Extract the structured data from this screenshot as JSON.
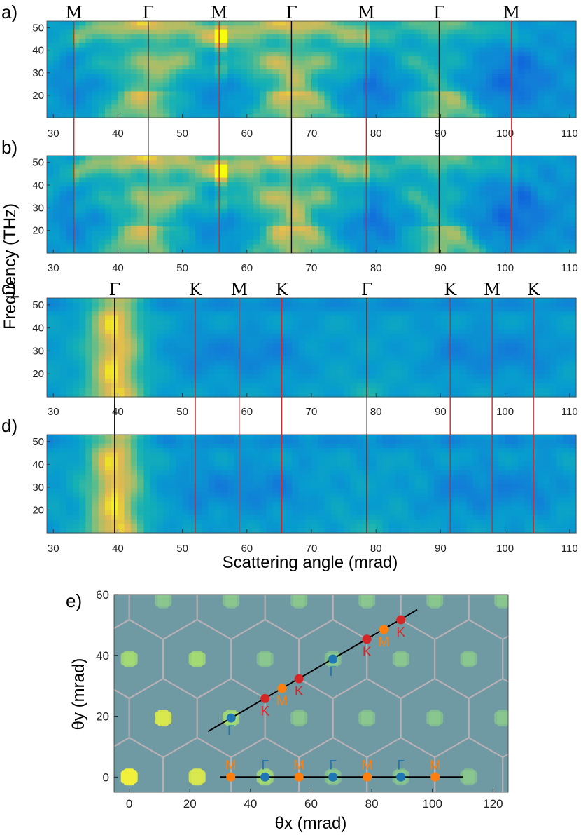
{
  "y_axis_label": "Frequency (THz)",
  "x_axis_label": "Scattering angle (mrad)",
  "colors": {
    "red_line": "#d62728",
    "black_line": "#000000",
    "point_gamma": "#1f77b4",
    "point_m": "#ff7f0e",
    "point_k": "#d62728",
    "bz_outline": "#b8b0b5"
  },
  "chart_data": [
    {
      "panel": "a)",
      "type": "heatmap",
      "xlim": [
        29,
        111
      ],
      "ylim": [
        10,
        53
      ],
      "x_ticks": [
        30,
        40,
        50,
        60,
        70,
        80,
        90,
        100,
        110
      ],
      "y_ticks": [
        20,
        30,
        40,
        50
      ],
      "markers": [
        {
          "label": "M",
          "x": 33.2,
          "color": "red"
        },
        {
          "label": "Γ",
          "x": 44.7,
          "color": "black"
        },
        {
          "label": "M",
          "x": 55.7,
          "color": "red"
        },
        {
          "label": "Γ",
          "x": 66.9,
          "color": "black"
        },
        {
          "label": "M",
          "x": 78.5,
          "color": "red"
        },
        {
          "label": "Γ",
          "x": 89.8,
          "color": "black"
        },
        {
          "label": "M",
          "x": 101.0,
          "color": "red"
        }
      ]
    },
    {
      "panel": "b)",
      "type": "heatmap",
      "xlim": [
        29,
        111
      ],
      "ylim": [
        10,
        53
      ],
      "x_ticks": [
        30,
        40,
        50,
        60,
        70,
        80,
        90,
        100,
        110
      ],
      "y_ticks": [
        20,
        30,
        40,
        50
      ],
      "markers": [
        {
          "label": "",
          "x": 33.2,
          "color": "red"
        },
        {
          "label": "",
          "x": 44.7,
          "color": "black"
        },
        {
          "label": "",
          "x": 55.7,
          "color": "red"
        },
        {
          "label": "",
          "x": 66.9,
          "color": "black"
        },
        {
          "label": "",
          "x": 78.5,
          "color": "red"
        },
        {
          "label": "",
          "x": 89.8,
          "color": "black"
        },
        {
          "label": "",
          "x": 101.0,
          "color": "red"
        }
      ]
    },
    {
      "panel": "c)",
      "type": "heatmap",
      "xlim": [
        29,
        111
      ],
      "ylim": [
        10,
        53
      ],
      "x_ticks": [
        30,
        40,
        50,
        60,
        70,
        80,
        90,
        100,
        110
      ],
      "y_ticks": [
        20,
        30,
        40,
        50
      ],
      "markers": [
        {
          "label": "Γ",
          "x": 39.5,
          "color": "black"
        },
        {
          "label": "K",
          "x": 52.0,
          "color": "red"
        },
        {
          "label": "M",
          "x": 58.8,
          "color": "red"
        },
        {
          "label": "K",
          "x": 65.4,
          "color": "red"
        },
        {
          "label": "Γ",
          "x": 78.6,
          "color": "black"
        },
        {
          "label": "K",
          "x": 91.5,
          "color": "red"
        },
        {
          "label": "M",
          "x": 98.0,
          "color": "red"
        },
        {
          "label": "K",
          "x": 104.4,
          "color": "red"
        }
      ]
    },
    {
      "panel": "d)",
      "type": "heatmap",
      "xlim": [
        29,
        111
      ],
      "ylim": [
        10,
        53
      ],
      "x_ticks": [
        30,
        40,
        50,
        60,
        70,
        80,
        90,
        100,
        110
      ],
      "y_ticks": [
        20,
        30,
        40,
        50
      ],
      "markers": [
        {
          "label": "",
          "x": 39.5,
          "color": "black"
        },
        {
          "label": "",
          "x": 52.0,
          "color": "red"
        },
        {
          "label": "",
          "x": 58.8,
          "color": "red"
        },
        {
          "label": "",
          "x": 65.4,
          "color": "red"
        },
        {
          "label": "",
          "x": 78.6,
          "color": "black"
        },
        {
          "label": "",
          "x": 91.5,
          "color": "red"
        },
        {
          "label": "",
          "x": 98.0,
          "color": "red"
        },
        {
          "label": "",
          "x": 104.4,
          "color": "red"
        }
      ]
    },
    {
      "panel": "e)",
      "type": "scatter",
      "xlabel": "θx (mrad)",
      "ylabel": "θy (mrad)",
      "xlim": [
        -5,
        125
      ],
      "ylim": [
        -5,
        60
      ],
      "x_ticks": [
        0,
        20,
        40,
        60,
        80,
        100,
        120
      ],
      "y_ticks": [
        0,
        20,
        40,
        60
      ],
      "lines": [
        {
          "x": [
            30,
            110
          ],
          "y": [
            0,
            0
          ]
        },
        {
          "x": [
            26,
            95
          ],
          "y": [
            15,
            55
          ]
        }
      ],
      "points": [
        {
          "x": 33.5,
          "y": 0,
          "label": "M",
          "kind": "M"
        },
        {
          "x": 44.8,
          "y": 0,
          "label": "Γ",
          "kind": "G"
        },
        {
          "x": 56.0,
          "y": 0,
          "label": "M",
          "kind": "M"
        },
        {
          "x": 67.2,
          "y": 0,
          "label": "Γ",
          "kind": "G"
        },
        {
          "x": 78.5,
          "y": 0,
          "label": "M",
          "kind": "M"
        },
        {
          "x": 89.6,
          "y": 0,
          "label": "Γ",
          "kind": "G"
        },
        {
          "x": 100.9,
          "y": 0,
          "label": "M",
          "kind": "M"
        },
        {
          "x": 33.6,
          "y": 19.4,
          "label": "Γ",
          "kind": "G"
        },
        {
          "x": 44.8,
          "y": 25.8,
          "label": "K",
          "kind": "K"
        },
        {
          "x": 50.4,
          "y": 29.1,
          "label": "M",
          "kind": "M"
        },
        {
          "x": 56.0,
          "y": 32.3,
          "label": "K",
          "kind": "K"
        },
        {
          "x": 67.2,
          "y": 38.8,
          "label": "Γ",
          "kind": "G"
        },
        {
          "x": 78.4,
          "y": 45.3,
          "label": "K",
          "kind": "K"
        },
        {
          "x": 84.0,
          "y": 48.5,
          "label": "M",
          "kind": "M"
        },
        {
          "x": 89.6,
          "y": 51.7,
          "label": "K",
          "kind": "K"
        }
      ]
    }
  ]
}
